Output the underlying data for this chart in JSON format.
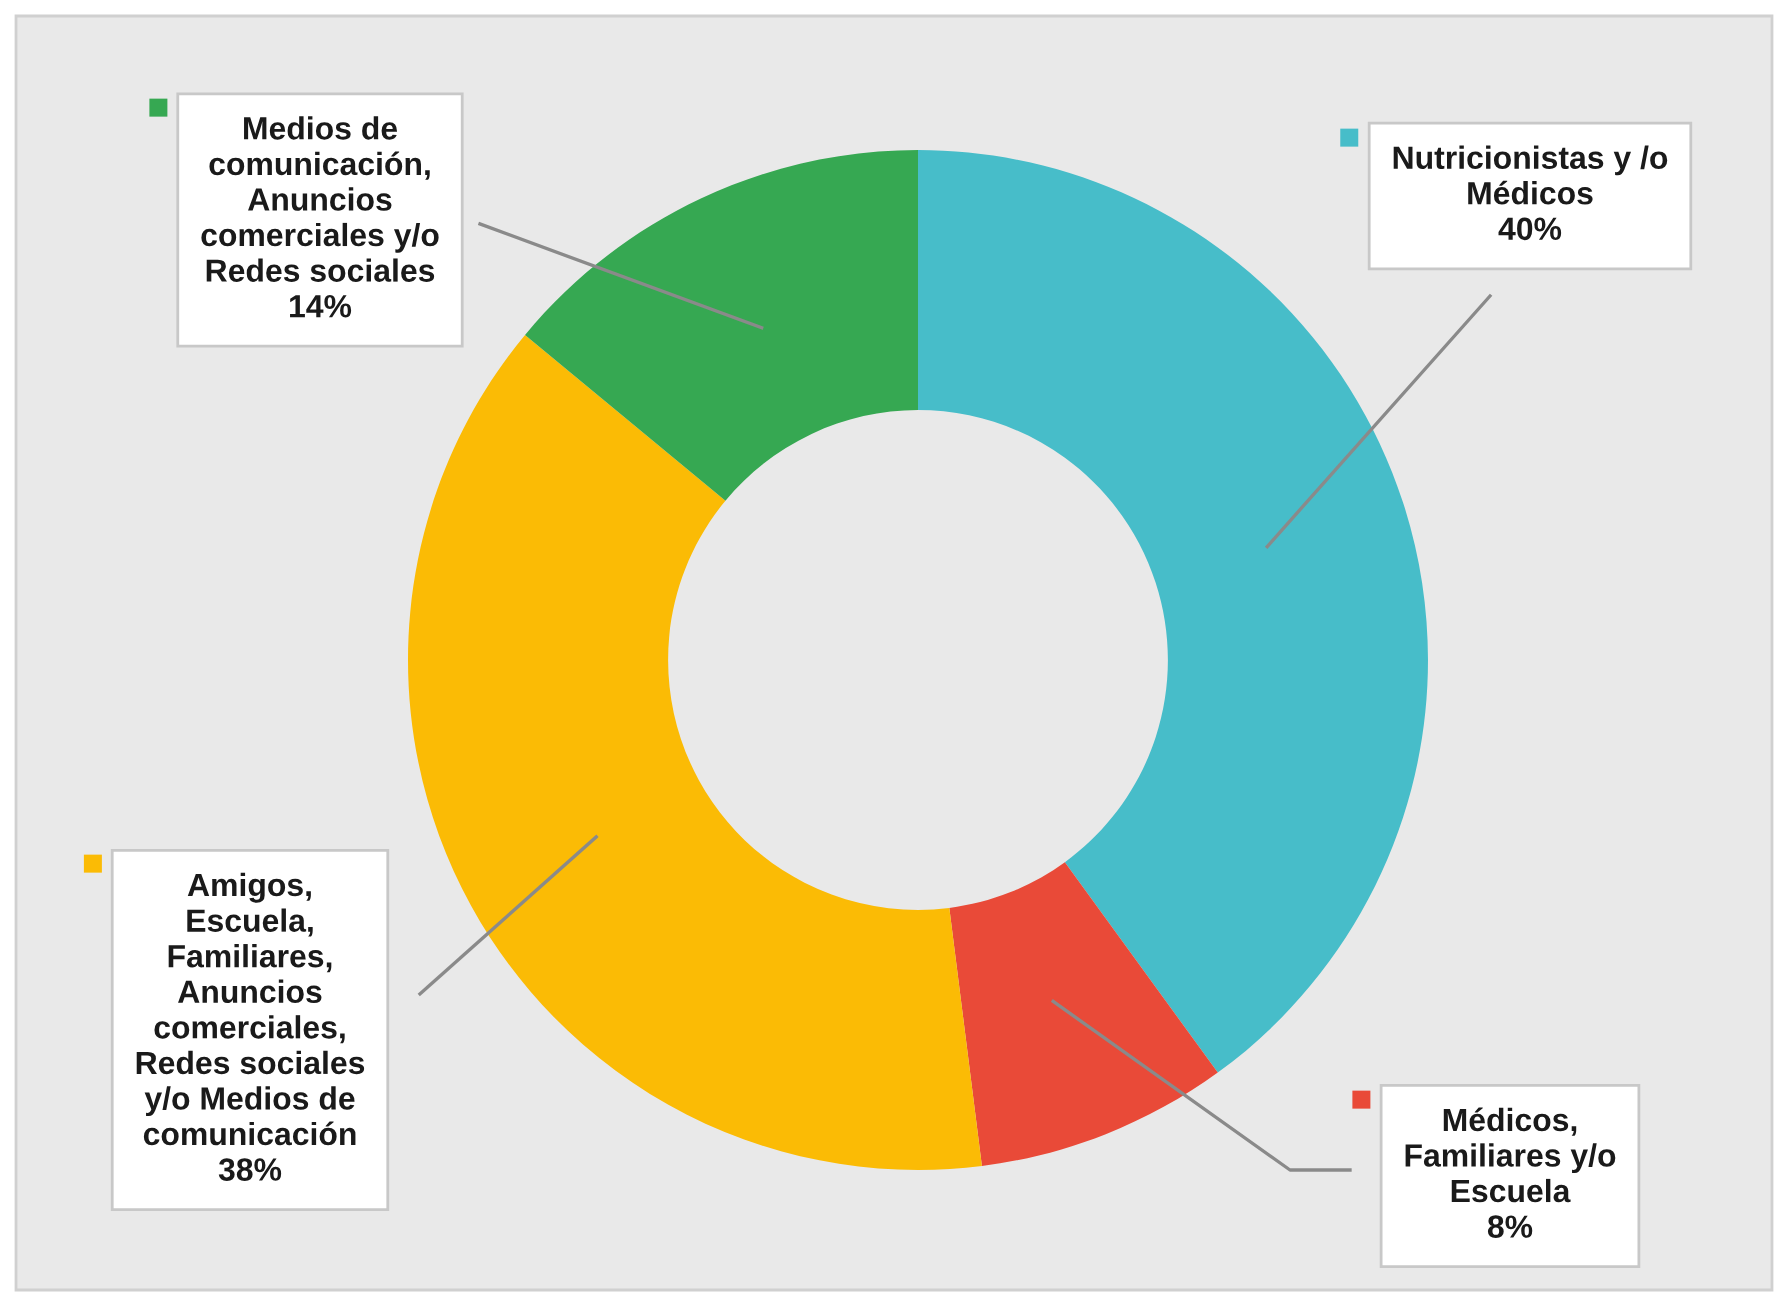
{
  "chart_data": {
    "type": "donut",
    "categories": [
      "Nutricionistas y /o\nMédicos",
      "Médicos,\nFamiliares y/o\nEscuela",
      "Amigos,\nEscuela,\nFamiliares,\nAnuncios\ncomerciales,\nRedes sociales\ny/o Medios de\ncomunicación",
      "Medios de\ncomunicación,\nAnuncios\ncomerciales y/o\nRedes sociales"
    ],
    "values": [
      40,
      8,
      38,
      14
    ],
    "legend": "right",
    "value_labels": [
      "40%",
      "8%",
      "38%",
      "14%"
    ],
    "colors": [
      "#47bdc9",
      "#e94a38",
      "#fbbb05",
      "#36a852"
    ]
  }
}
